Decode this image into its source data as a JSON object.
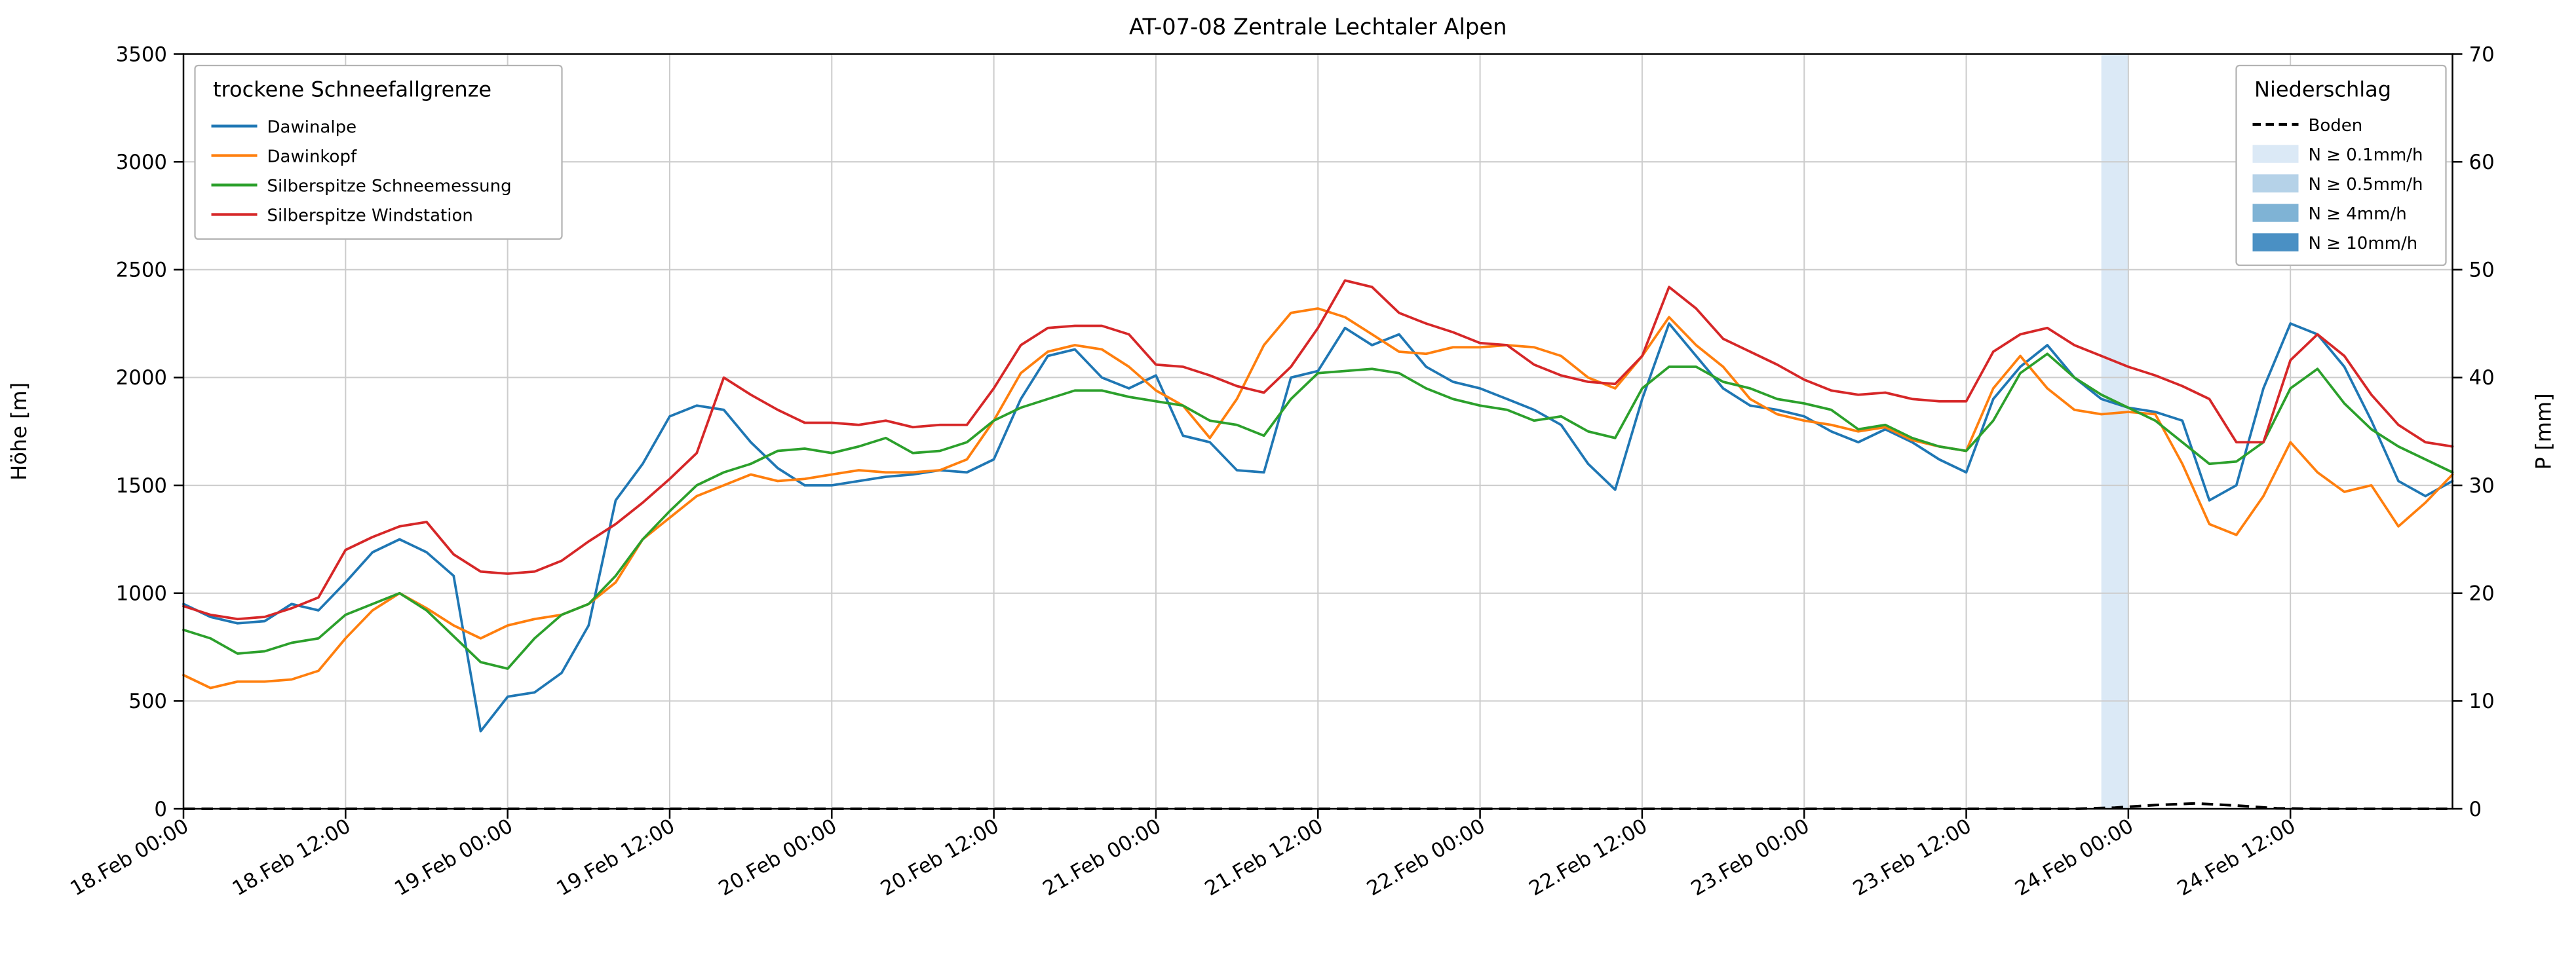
{
  "title": "AT-07-08 Zentrale Lechtaler Alpen",
  "axes": {
    "y_left_label": "Höhe [m]",
    "y_right_label": "P [mm]",
    "y_left_ticks": [
      0,
      500,
      1000,
      1500,
      2000,
      2500,
      3000,
      3500
    ],
    "y_right_ticks": [
      0,
      10,
      20,
      30,
      40,
      50,
      60,
      70
    ]
  },
  "legend_left": {
    "title": "trockene Schneefallgrenze"
  },
  "legend_right": {
    "title": "Niederschlag",
    "boden_label": "Boden",
    "levels": [
      {
        "label": "N ≥ 0.1mm/h",
        "color": "#dbe9f6"
      },
      {
        "label": "N ≥ 0.5mm/h",
        "color": "#b5d2e8"
      },
      {
        "label": "N ≥ 4mm/h",
        "color": "#7fb3d5"
      },
      {
        "label": "N ≥ 10mm/h",
        "color": "#4a90c4"
      }
    ]
  },
  "chart_data": {
    "type": "line",
    "title": "AT-07-08 Zentrale Lechtaler Alpen",
    "xlabel": "",
    "ylabel_left": "Höhe [m]",
    "ylabel_right": "P [mm]",
    "ylim_left": [
      0,
      3500
    ],
    "ylim_right": [
      0,
      70
    ],
    "grid": true,
    "legend_positions": [
      "upper left",
      "upper right"
    ],
    "x_hours_range": [
      0,
      168
    ],
    "x_step_h": 2,
    "x_ticks": [
      {
        "h": 0,
        "label": "18.Feb 00:00"
      },
      {
        "h": 12,
        "label": "18.Feb 12:00"
      },
      {
        "h": 24,
        "label": "19.Feb 00:00"
      },
      {
        "h": 36,
        "label": "19.Feb 12:00"
      },
      {
        "h": 48,
        "label": "20.Feb 00:00"
      },
      {
        "h": 60,
        "label": "20.Feb 12:00"
      },
      {
        "h": 72,
        "label": "21.Feb 00:00"
      },
      {
        "h": 84,
        "label": "21.Feb 12:00"
      },
      {
        "h": 96,
        "label": "22.Feb 00:00"
      },
      {
        "h": 108,
        "label": "22.Feb 12:00"
      },
      {
        "h": 120,
        "label": "23.Feb 00:00"
      },
      {
        "h": 132,
        "label": "23.Feb 12:00"
      },
      {
        "h": 144,
        "label": "24.Feb 00:00"
      },
      {
        "h": 156,
        "label": "24.Feb 12:00"
      }
    ],
    "series": [
      {
        "name": "Dawinalpe",
        "color": "#1f77b4",
        "axis": "left",
        "values": [
          950,
          890,
          860,
          870,
          950,
          920,
          1050,
          1190,
          1250,
          1190,
          1080,
          360,
          520,
          540,
          630,
          850,
          1430,
          1600,
          1820,
          1870,
          1850,
          1700,
          1580,
          1500,
          1500,
          1520,
          1540,
          1550,
          1570,
          1560,
          1620,
          1900,
          2100,
          2130,
          2000,
          1950,
          2010,
          1730,
          1700,
          1570,
          1560,
          2000,
          2030,
          2230,
          2150,
          2200,
          2050,
          1980,
          1950,
          1900,
          1850,
          1780,
          1600,
          1480,
          1900,
          2250,
          2100,
          1950,
          1870,
          1850,
          1820,
          1750,
          1700,
          1760,
          1700,
          1620,
          1560,
          1900,
          2050,
          2150,
          2000,
          1900,
          1860,
          1840,
          1800,
          1430,
          1500,
          1950,
          2250,
          2200,
          2050,
          1800,
          1520,
          1450,
          1520
        ]
      },
      {
        "name": "Dawinkopf",
        "color": "#ff7f0e",
        "axis": "left",
        "values": [
          620,
          560,
          590,
          590,
          600,
          640,
          790,
          920,
          1000,
          930,
          850,
          790,
          850,
          880,
          900,
          950,
          1050,
          1250,
          1350,
          1450,
          1500,
          1550,
          1520,
          1530,
          1550,
          1570,
          1560,
          1560,
          1570,
          1620,
          1800,
          2020,
          2120,
          2150,
          2130,
          2050,
          1940,
          1870,
          1720,
          1900,
          2150,
          2300,
          2320,
          2280,
          2200,
          2120,
          2110,
          2140,
          2140,
          2150,
          2140,
          2100,
          2000,
          1950,
          2100,
          2280,
          2150,
          2050,
          1900,
          1830,
          1800,
          1780,
          1750,
          1770,
          1710,
          1680,
          1660,
          1950,
          2100,
          1950,
          1850,
          1830,
          1840,
          1830,
          1600,
          1320,
          1270,
          1450,
          1700,
          1560,
          1470,
          1500,
          1310,
          1420,
          1550
        ]
      },
      {
        "name": "Silberspitze Schneemessung",
        "color": "#2ca02c",
        "axis": "left",
        "values": [
          830,
          790,
          720,
          730,
          770,
          790,
          900,
          950,
          1000,
          920,
          800,
          680,
          650,
          790,
          900,
          950,
          1080,
          1250,
          1380,
          1500,
          1560,
          1600,
          1660,
          1670,
          1650,
          1680,
          1720,
          1650,
          1660,
          1700,
          1800,
          1860,
          1900,
          1940,
          1940,
          1910,
          1890,
          1870,
          1800,
          1780,
          1730,
          1900,
          2020,
          2030,
          2040,
          2020,
          1950,
          1900,
          1870,
          1850,
          1800,
          1820,
          1750,
          1720,
          1950,
          2050,
          2050,
          1980,
          1950,
          1900,
          1880,
          1850,
          1760,
          1780,
          1720,
          1680,
          1660,
          1800,
          2020,
          2110,
          2000,
          1920,
          1860,
          1800,
          1700,
          1600,
          1610,
          1700,
          1950,
          2040,
          1880,
          1760,
          1680,
          1620,
          1560
        ]
      },
      {
        "name": "Silberspitze Windstation",
        "color": "#d62728",
        "axis": "left",
        "values": [
          940,
          900,
          880,
          890,
          930,
          980,
          1200,
          1260,
          1310,
          1330,
          1180,
          1100,
          1090,
          1100,
          1150,
          1240,
          1320,
          1420,
          1530,
          1650,
          2000,
          1920,
          1850,
          1790,
          1790,
          1780,
          1800,
          1770,
          1780,
          1780,
          1950,
          2150,
          2230,
          2240,
          2240,
          2200,
          2060,
          2050,
          2010,
          1960,
          1930,
          2050,
          2230,
          2450,
          2420,
          2300,
          2250,
          2210,
          2160,
          2150,
          2060,
          2010,
          1980,
          1970,
          2100,
          2420,
          2320,
          2180,
          2120,
          2060,
          1990,
          1940,
          1920,
          1930,
          1900,
          1890,
          1890,
          2120,
          2200,
          2230,
          2150,
          2100,
          2050,
          2010,
          1960,
          1900,
          1700,
          1700,
          2080,
          2200,
          2100,
          1920,
          1780,
          1700,
          1680
        ]
      }
    ],
    "boden": {
      "name": "Boden",
      "axis": "right",
      "style": "dashed",
      "color": "#000000",
      "points": [
        [
          0,
          0
        ],
        [
          140,
          0
        ],
        [
          143,
          0.1
        ],
        [
          146,
          0.35
        ],
        [
          149,
          0.5
        ],
        [
          152,
          0.3
        ],
        [
          155,
          0.05
        ],
        [
          158,
          0
        ],
        [
          168,
          0
        ]
      ]
    },
    "precip_bands": [
      {
        "level": "N ≥ 0.1mm/h",
        "start_h": 142,
        "end_h": 144,
        "color": "#dbe9f6"
      }
    ]
  }
}
